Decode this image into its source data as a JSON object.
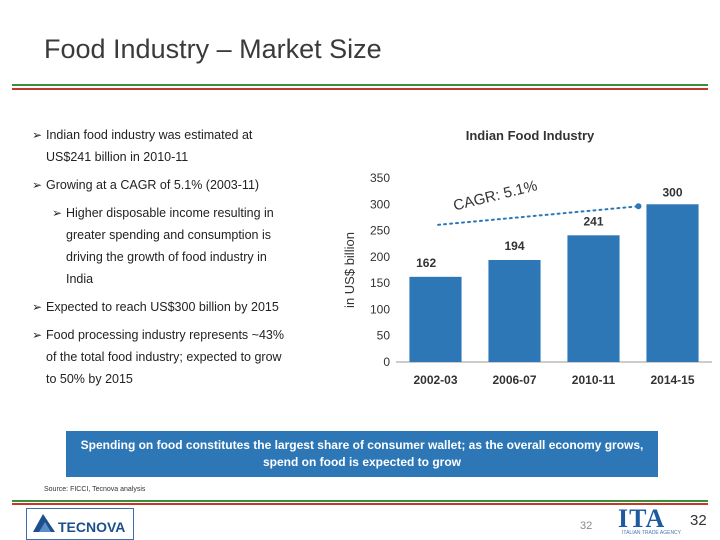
{
  "slide": {
    "title": "Food Industry – Market Size",
    "bullets": [
      {
        "text": "Indian food industry was estimated at",
        "indent": 0
      },
      {
        "text": "US$241 billion in 2010-11",
        "indent": 0,
        "continuation": true
      },
      {
        "text": "Growing at a CAGR of 5.1% (2003-11)",
        "indent": 0
      },
      {
        "text": "Higher disposable income resulting in",
        "indent": 1
      },
      {
        "text": "greater spending and consumption is",
        "indent": 1,
        "continuation": true
      },
      {
        "text": "driving the growth of food industry in",
        "indent": 1,
        "continuation": true
      },
      {
        "text": "India",
        "indent": 1,
        "continuation": true
      },
      {
        "text": "Expected to reach US$300 billion by 2015",
        "indent": 0
      },
      {
        "text": "Food processing industry represents ~43%",
        "indent": 0
      },
      {
        "text": "of the total food industry; expected to grow",
        "indent": 0,
        "continuation": true
      },
      {
        "text": "to 50% by 2015",
        "indent": 0,
        "continuation": true
      }
    ],
    "callout": "Spending on food constitutes the largest share of consumer wallet; as the overall economy grows, spend on food is expected to grow",
    "source": "Source: FICCI, Tecnova analysis",
    "footer_logo": "TECNOVA",
    "page_number": "32",
    "page_number_faded": "32",
    "partner_logo": "ITA",
    "partner_logo_sub": "ITALIAN TRADE AGENCY"
  },
  "colors": {
    "bar": "#2e77b6",
    "green": "#3b8f3b",
    "red": "#c0392b",
    "callout_bg": "#2e77b6"
  },
  "chart_data": {
    "type": "bar",
    "title": "Indian Food Industry",
    "ylabel": "in US$ billion",
    "xlabel": "",
    "categories": [
      "2002-03",
      "2006-07",
      "2010-11",
      "2014-15"
    ],
    "values": [
      162,
      194,
      241,
      300
    ],
    "ylim": [
      0,
      350
    ],
    "yticks": [
      0,
      50,
      100,
      150,
      200,
      250,
      300,
      350
    ],
    "grid": false,
    "annotation": "CAGR: 5.1%"
  }
}
